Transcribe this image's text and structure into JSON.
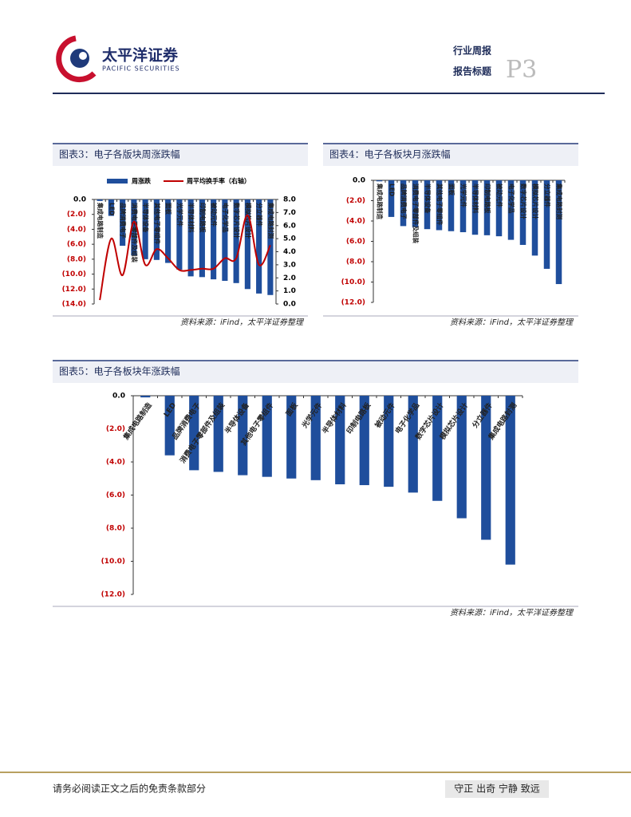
{
  "header": {
    "company": "太平洋证券",
    "company_en": "PACIFIC SECURITIES",
    "report_type": "行业周报",
    "report_title": "报告标题",
    "page": "P3"
  },
  "chart_data": [
    {
      "type": "bar_line",
      "title": "图表3：电子各版块周涨跌幅",
      "source": "资料来源：iFind，太平洋证券整理",
      "legend": "top",
      "categories": [
        "集成电路制造",
        "LED",
        "品牌消费电子",
        "消费电子零部件及组装",
        "半导体设备",
        "其他电子零组件",
        "面板",
        "光学元件",
        "半导体材料",
        "印制电路板",
        "被动元件",
        "电子化学品",
        "数字芯片设计",
        "模拟芯片设计",
        "分立器件",
        "集成电路封测"
      ],
      "series": [
        {
          "name": "周涨跌",
          "color": "#1f4e9c",
          "values": [
            -0.2,
            -2.2,
            -6.2,
            -7.5,
            -8.0,
            -8.1,
            -8.5,
            -9.4,
            -10.3,
            -10.4,
            -10.7,
            -10.9,
            -11.2,
            -12.0,
            -12.6,
            -12.8
          ]
        },
        {
          "name": "周平均换手率（右轴）",
          "color": "#c00000",
          "axis": "y2",
          "values": [
            0.3,
            5.0,
            2.2,
            6.3,
            3.0,
            4.2,
            3.5,
            2.6,
            2.6,
            2.7,
            2.7,
            3.5,
            3.5,
            6.8,
            3.0,
            4.5
          ]
        }
      ],
      "ylim": [
        -14,
        0
      ],
      "yticks": [
        {
          "value": 0,
          "label": "0.0"
        },
        {
          "value": -2,
          "label": "(2.0)"
        },
        {
          "value": -4,
          "label": "(4.0)"
        },
        {
          "value": -6,
          "label": "(6.0)"
        },
        {
          "value": -8,
          "label": "(8.0)"
        },
        {
          "value": -10,
          "label": "(10.0)"
        },
        {
          "value": -12,
          "label": "(12.0)"
        },
        {
          "value": -14,
          "label": "(14.0)"
        }
      ],
      "y2lim": [
        0,
        8
      ],
      "y2ticks": [
        {
          "value": 0,
          "label": "0.0"
        },
        {
          "value": 1,
          "label": "1.0"
        },
        {
          "value": 2,
          "label": "2.0"
        },
        {
          "value": 3,
          "label": "3.0"
        },
        {
          "value": 4,
          "label": "4.0"
        },
        {
          "value": 5,
          "label": "5.0"
        },
        {
          "value": 6,
          "label": "6.0"
        },
        {
          "value": 7,
          "label": "7.0"
        },
        {
          "value": 8,
          "label": "8.0"
        }
      ]
    },
    {
      "type": "bar",
      "title": "图表4：电子各板块月涨跌幅",
      "source": "资料来源：iFind，太平洋证券整理",
      "color": "#1f4e9c",
      "categories": [
        "集成电路制造",
        "LED",
        "品牌消费电子",
        "消费电子零部件及组装",
        "半导体设备",
        "其他电子零组件",
        "面板",
        "光学元件",
        "半导体材料",
        "印制电路板",
        "被动元件",
        "电子化学品",
        "数字芯片设计",
        "模拟芯片设计",
        "分立器件",
        "集成电路封测"
      ],
      "values": [
        -0.1,
        -3.6,
        -4.5,
        -4.6,
        -4.8,
        -4.9,
        -5.0,
        -5.1,
        -5.35,
        -5.4,
        -5.5,
        -5.85,
        -6.35,
        -7.4,
        -8.7,
        -10.2
      ],
      "ylim": [
        -12,
        0
      ],
      "yticks": [
        {
          "value": 0,
          "label": "0.0"
        },
        {
          "value": -2,
          "label": "(2.0)"
        },
        {
          "value": -4,
          "label": "(4.0)"
        },
        {
          "value": -6,
          "label": "(6.0)"
        },
        {
          "value": -8,
          "label": "(8.0)"
        },
        {
          "value": -10,
          "label": "(10.0)"
        },
        {
          "value": -12,
          "label": "(12.0)"
        }
      ]
    },
    {
      "type": "bar",
      "title": "图表5：电子各板块年涨跌幅",
      "source": "资料来源：iFind，太平洋证券整理",
      "color": "#1f4e9c",
      "categories": [
        "集成电路制造",
        "LED",
        "品牌消费电子",
        "消费电子零部件及组装",
        "半导体设备",
        "其他电子零组件",
        "面板",
        "光学元件",
        "半导体材料",
        "印制电路板",
        "被动元件",
        "电子化学品",
        "数字芯片设计",
        "模拟芯片设计",
        "分立器件",
        "集成电路封测"
      ],
      "values": [
        -0.1,
        -3.6,
        -4.5,
        -4.6,
        -4.8,
        -4.9,
        -5.0,
        -5.1,
        -5.35,
        -5.4,
        -5.5,
        -5.85,
        -6.35,
        -7.4,
        -8.7,
        -10.2
      ],
      "ylim": [
        -12,
        0
      ],
      "yticks": [
        {
          "value": 0,
          "label": "0.0"
        },
        {
          "value": -2,
          "label": "(2.0)"
        },
        {
          "value": -4,
          "label": "(4.0)"
        },
        {
          "value": -6,
          "label": "(6.0)"
        },
        {
          "value": -8,
          "label": "(8.0)"
        },
        {
          "value": -10,
          "label": "(10.0)"
        },
        {
          "value": -12,
          "label": "(12.0)"
        }
      ]
    }
  ],
  "footer": {
    "disclaimer": "请务必阅读正文之后的免责条款部分",
    "motto": "守正 出奇 宁静 致远"
  }
}
